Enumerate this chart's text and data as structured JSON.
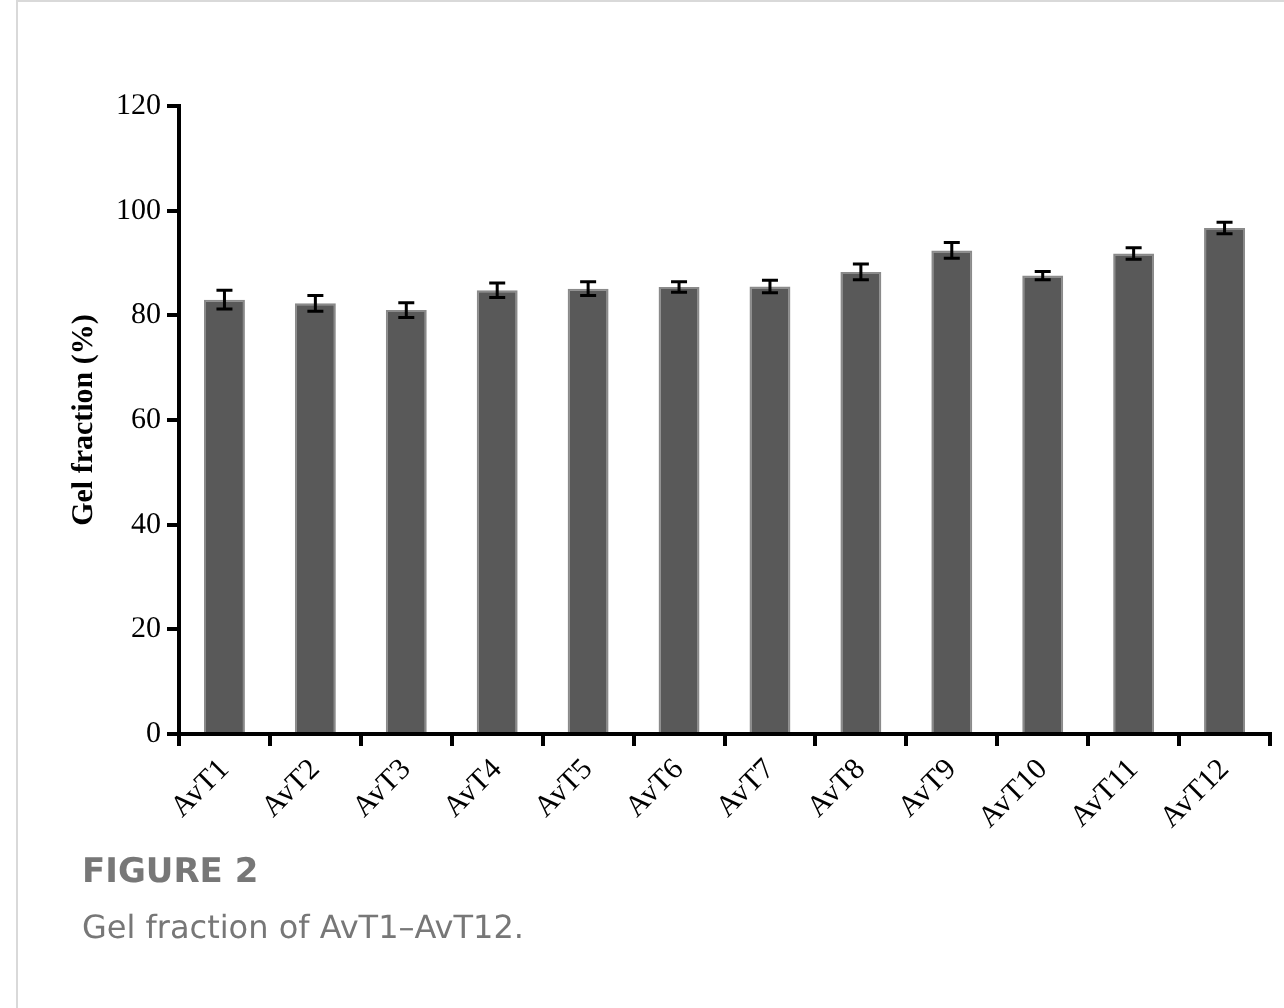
{
  "chart_data": {
    "type": "bar",
    "ylabel": "Gel fraction (%)",
    "categories": [
      "AvT1",
      "AvT2",
      "AvT3",
      "AvT4",
      "AvT5",
      "AvT6",
      "AvT7",
      "AvT8",
      "AvT9",
      "AvT10",
      "AvT11",
      "AvT12"
    ],
    "values": [
      83.0,
      82.3,
      81.0,
      84.8,
      85.1,
      85.4,
      85.5,
      88.3,
      92.4,
      87.6,
      91.8,
      96.7
    ],
    "errors": [
      1.8,
      1.5,
      1.4,
      1.4,
      1.3,
      1.0,
      1.2,
      1.5,
      1.5,
      0.8,
      1.1,
      1.1
    ],
    "color": "#595959",
    "ylim": [
      0,
      120
    ],
    "yticks": [
      0,
      20,
      40,
      60,
      80,
      100,
      120
    ],
    "grid": false,
    "legend": false,
    "annotations": [
      "FIGURE 2",
      "Gel fraction of AvT1–AvT12."
    ]
  }
}
